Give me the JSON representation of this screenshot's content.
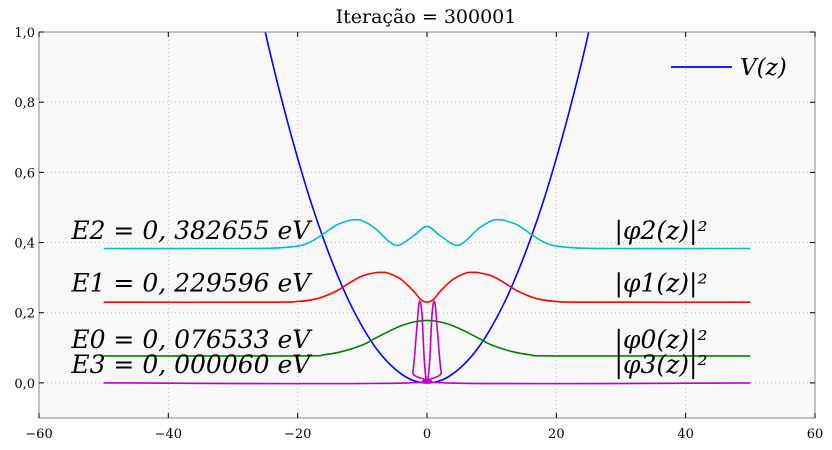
{
  "chart_data": {
    "type": "line",
    "title": "Iteração = 300001",
    "xlabel": "",
    "ylabel": "",
    "xlim": [
      -60,
      60
    ],
    "ylim": [
      -0.1,
      1.0
    ],
    "grid": true,
    "legend_position": "top-right",
    "x_ticks": [
      {
        "value": -60,
        "label": "−60"
      },
      {
        "value": -40,
        "label": "−40"
      },
      {
        "value": -20,
        "label": "−20"
      },
      {
        "value": 0,
        "label": "0"
      },
      {
        "value": 20,
        "label": "20"
      },
      {
        "value": 40,
        "label": "40"
      },
      {
        "value": 60,
        "label": "60"
      }
    ],
    "y_ticks": [
      {
        "value": 0.0,
        "label": "0,0"
      },
      {
        "value": 0.2,
        "label": "0,2"
      },
      {
        "value": 0.4,
        "label": "0,4"
      },
      {
        "value": 0.6,
        "label": "0,6"
      },
      {
        "value": 0.8,
        "label": "0,8"
      },
      {
        "value": 1.0,
        "label": "1,0"
      }
    ],
    "series": [
      {
        "name": "V(z)",
        "color": "#0000ff",
        "x": [
          -26,
          -24,
          -22,
          -20,
          -18,
          -16,
          -14,
          -12,
          -10,
          -8,
          -6,
          -4,
          -2,
          0,
          2,
          4,
          6,
          8,
          10,
          12,
          14,
          16,
          18,
          20,
          22,
          24,
          25
        ],
        "y": [
          1.08,
          0.92,
          0.774,
          0.64,
          0.518,
          0.41,
          0.314,
          0.23,
          0.16,
          0.102,
          0.058,
          0.026,
          0.006,
          0.0,
          0.006,
          0.026,
          0.058,
          0.102,
          0.16,
          0.23,
          0.314,
          0.41,
          0.518,
          0.64,
          0.774,
          0.92,
          1.0
        ]
      },
      {
        "name": "|φ2(z)|²",
        "color": "#00bfbf",
        "x": [
          -50,
          -30,
          -24,
          -20,
          -18,
          -16,
          -14,
          -12,
          -11,
          -10,
          -8,
          -6,
          -5,
          -4,
          -2,
          0,
          2,
          4,
          5,
          6,
          8,
          10,
          11,
          12,
          14,
          16,
          18,
          20,
          24,
          30,
          50
        ],
        "y": [
          0.383,
          0.383,
          0.384,
          0.39,
          0.402,
          0.425,
          0.45,
          0.463,
          0.465,
          0.462,
          0.44,
          0.405,
          0.393,
          0.395,
          0.42,
          0.446,
          0.42,
          0.395,
          0.393,
          0.405,
          0.44,
          0.462,
          0.465,
          0.463,
          0.45,
          0.425,
          0.402,
          0.39,
          0.384,
          0.383,
          0.383
        ]
      },
      {
        "name": "|φ1(z)|²",
        "color": "#ff0000",
        "x": [
          -50,
          -25,
          -20,
          -17,
          -14,
          -12,
          -10,
          -8,
          -7,
          -6,
          -4,
          -2,
          -1,
          0,
          1,
          2,
          4,
          6,
          7,
          8,
          10,
          12,
          14,
          17,
          20,
          25,
          50
        ],
        "y": [
          0.23,
          0.23,
          0.232,
          0.24,
          0.262,
          0.285,
          0.305,
          0.314,
          0.315,
          0.313,
          0.295,
          0.26,
          0.238,
          0.23,
          0.238,
          0.26,
          0.295,
          0.313,
          0.315,
          0.314,
          0.305,
          0.285,
          0.262,
          0.24,
          0.232,
          0.23,
          0.23
        ]
      },
      {
        "name": "|φ0(z)|²",
        "color": "#008000",
        "x": [
          -50,
          -20,
          -16,
          -13,
          -10,
          -8,
          -6,
          -4,
          -2,
          0,
          2,
          4,
          6,
          8,
          10,
          13,
          16,
          20,
          50
        ],
        "y": [
          0.077,
          0.077,
          0.08,
          0.09,
          0.108,
          0.127,
          0.146,
          0.163,
          0.174,
          0.178,
          0.174,
          0.163,
          0.146,
          0.127,
          0.108,
          0.09,
          0.08,
          0.077,
          0.077
        ]
      },
      {
        "name": "|φ3(z)|²",
        "color": "#bf00bf",
        "x": [
          -50,
          -3,
          -2.2,
          -1.6,
          -1.2,
          -0.8,
          -0.4,
          0,
          0.4,
          0.8,
          1.2,
          1.6,
          2.2,
          3,
          50
        ],
        "y": [
          0.0,
          0.0,
          0.03,
          0.15,
          0.23,
          0.2,
          0.06,
          0.0,
          0.06,
          0.2,
          0.23,
          0.15,
          0.03,
          0.0,
          0.0
        ]
      }
    ],
    "legend": [
      {
        "label": "V(z)",
        "color": "#0000ff"
      }
    ],
    "annotations": [
      {
        "text": "E2 = 0, 382655 eV",
        "x": -55,
        "y": 0.41
      },
      {
        "text": "E1 = 0, 229596 eV",
        "x": -55,
        "y": 0.26
      },
      {
        "text": "E0 = 0, 076533 eV",
        "x": -55,
        "y": 0.1
      },
      {
        "text": "E3 = 0, 000060 eV",
        "x": -55,
        "y": 0.028
      },
      {
        "text": "|φ2(z)|²",
        "x": 29,
        "y": 0.41
      },
      {
        "text": "|φ1(z)|²",
        "x": 29,
        "y": 0.26
      },
      {
        "text": "|φ0(z)|²",
        "x": 29,
        "y": 0.1
      },
      {
        "text": "|φ3(z)|²",
        "x": 29,
        "y": 0.028
      }
    ]
  }
}
